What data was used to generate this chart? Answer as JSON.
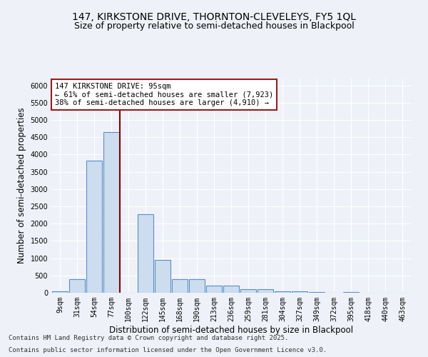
{
  "title": "147, KIRKSTONE DRIVE, THORNTON-CLEVELEYS, FY5 1QL",
  "subtitle": "Size of property relative to semi-detached houses in Blackpool",
  "xlabel": "Distribution of semi-detached houses by size in Blackpool",
  "ylabel": "Number of semi-detached properties",
  "categories": [
    "9sqm",
    "31sqm",
    "54sqm",
    "77sqm",
    "100sqm",
    "122sqm",
    "145sqm",
    "168sqm",
    "190sqm",
    "213sqm",
    "236sqm",
    "259sqm",
    "281sqm",
    "304sqm",
    "327sqm",
    "349sqm",
    "372sqm",
    "395sqm",
    "418sqm",
    "440sqm",
    "463sqm"
  ],
  "values": [
    50,
    400,
    3820,
    4650,
    0,
    2270,
    960,
    390,
    390,
    200,
    200,
    100,
    100,
    50,
    50,
    25,
    0,
    25,
    0,
    0,
    0
  ],
  "bar_color": "#ccddf0",
  "bar_edge_color": "#5b8dc8",
  "property_line_color": "#8b0000",
  "annotation_text": "147 KIRKSTONE DRIVE: 95sqm\n← 61% of semi-detached houses are smaller (7,923)\n38% of semi-detached houses are larger (4,910) →",
  "annotation_box_color": "#ffffff",
  "annotation_box_edge_color": "#9b1b1b",
  "ylim": [
    0,
    6200
  ],
  "yticks": [
    0,
    500,
    1000,
    1500,
    2000,
    2500,
    3000,
    3500,
    4000,
    4500,
    5000,
    5500,
    6000
  ],
  "background_color": "#eef2f8",
  "grid_color": "#ffffff",
  "footer_line1": "Contains HM Land Registry data © Crown copyright and database right 2025.",
  "footer_line2": "Contains public sector information licensed under the Open Government Licence v3.0.",
  "title_fontsize": 10,
  "subtitle_fontsize": 9,
  "axis_label_fontsize": 8.5,
  "tick_fontsize": 7,
  "annotation_fontsize": 7.5,
  "footer_fontsize": 6.5
}
